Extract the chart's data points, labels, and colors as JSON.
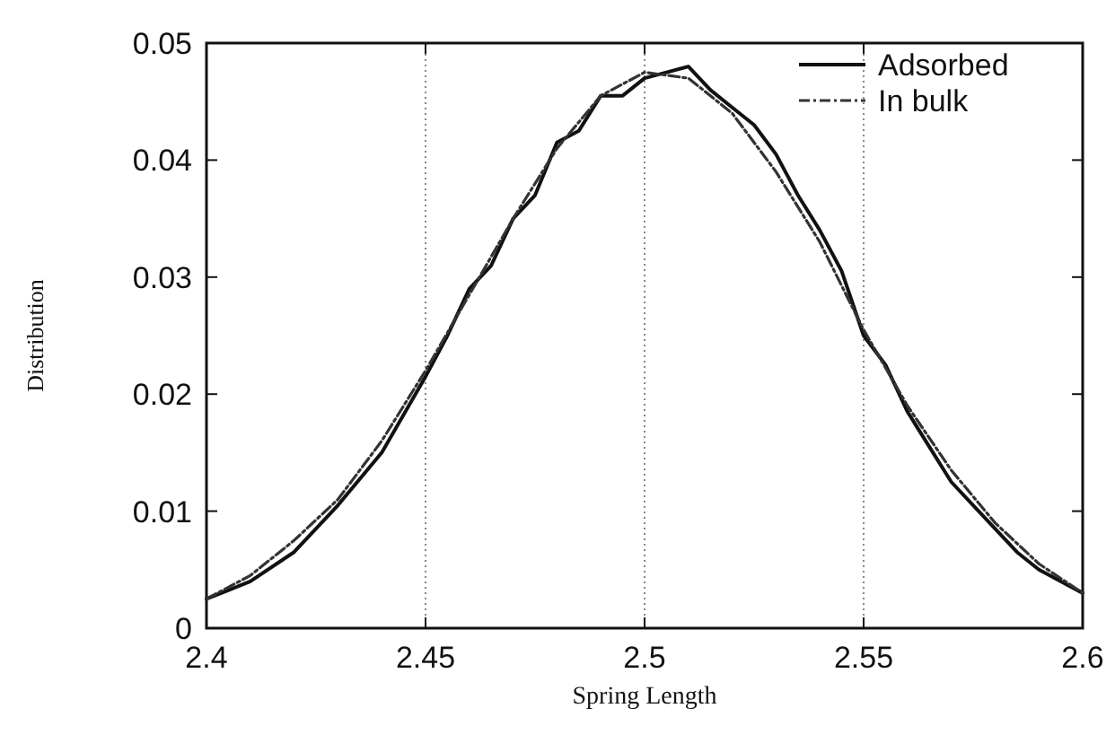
{
  "chart_data": {
    "type": "line",
    "xlabel": "Spring Length",
    "ylabel": "Distribution",
    "xlim": [
      2.4,
      2.6
    ],
    "ylim": [
      0,
      0.05
    ],
    "xticks": [
      2.4,
      2.45,
      2.5,
      2.55,
      2.6
    ],
    "yticks": [
      0,
      0.01,
      0.02,
      0.03,
      0.04,
      0.05
    ],
    "grid": "x",
    "legend": "top right",
    "series": [
      {
        "name": "Adsorbed",
        "color": "#111111",
        "line_style": "solid",
        "x": [
          2.4,
          2.41,
          2.42,
          2.43,
          2.44,
          2.45,
          2.455,
          2.46,
          2.465,
          2.47,
          2.475,
          2.48,
          2.485,
          2.49,
          2.495,
          2.5,
          2.505,
          2.51,
          2.515,
          2.52,
          2.525,
          2.53,
          2.535,
          2.54,
          2.545,
          2.55,
          2.555,
          2.56,
          2.565,
          2.57,
          2.575,
          2.58,
          2.585,
          2.59,
          2.6
        ],
        "values": [
          0.0025,
          0.004,
          0.0065,
          0.0105,
          0.015,
          0.0215,
          0.025,
          0.029,
          0.031,
          0.035,
          0.037,
          0.0415,
          0.0425,
          0.0455,
          0.0455,
          0.047,
          0.0475,
          0.048,
          0.046,
          0.0445,
          0.043,
          0.0405,
          0.037,
          0.034,
          0.0305,
          0.025,
          0.0225,
          0.0185,
          0.0155,
          0.0125,
          0.0105,
          0.0085,
          0.0065,
          0.005,
          0.003
        ]
      },
      {
        "name": "In bulk",
        "color": "#333333",
        "line_style": "dashdot",
        "x": [
          2.4,
          2.41,
          2.42,
          2.43,
          2.44,
          2.45,
          2.46,
          2.47,
          2.48,
          2.49,
          2.5,
          2.51,
          2.52,
          2.53,
          2.54,
          2.55,
          2.56,
          2.57,
          2.58,
          2.59,
          2.6
        ],
        "values": [
          0.0025,
          0.0045,
          0.0075,
          0.011,
          0.016,
          0.022,
          0.0285,
          0.035,
          0.041,
          0.0455,
          0.0475,
          0.047,
          0.044,
          0.039,
          0.033,
          0.0255,
          0.019,
          0.0135,
          0.009,
          0.0055,
          0.003
        ]
      }
    ]
  }
}
